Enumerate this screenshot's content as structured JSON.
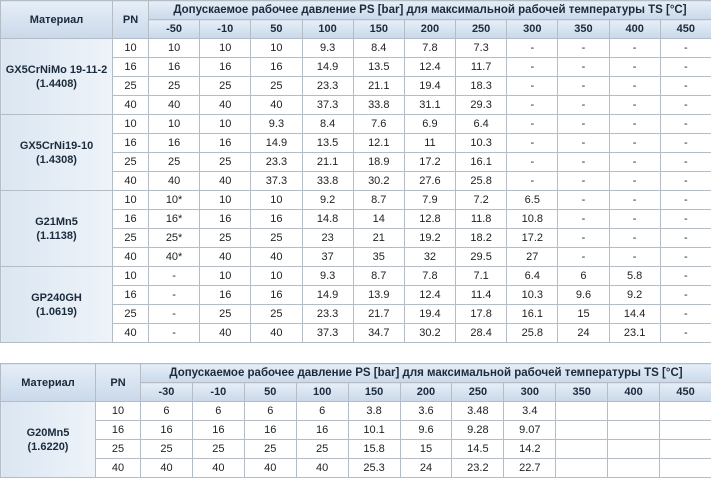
{
  "tables": [
    {
      "header": {
        "material": "Материал",
        "pn": "PN",
        "description": "Допускаемое рабочее давление PS [bar] для максимальной рабочей температуры TS [°C]",
        "temperatures": [
          "-50",
          "-10",
          "50",
          "100",
          "150",
          "200",
          "250",
          "300",
          "350",
          "400",
          "450"
        ]
      },
      "groups": [
        {
          "material": "GX5CrNiMo 19-11-2",
          "code": "(1.4408)",
          "rows": [
            {
              "pn": "10",
              "values": [
                "10",
                "10",
                "10",
                "9.3",
                "8.4",
                "7.8",
                "7.3",
                "-",
                "-",
                "-",
                "-"
              ]
            },
            {
              "pn": "16",
              "values": [
                "16",
                "16",
                "16",
                "14.9",
                "13.5",
                "12.4",
                "11.7",
                "-",
                "-",
                "-",
                "-"
              ]
            },
            {
              "pn": "25",
              "values": [
                "25",
                "25",
                "25",
                "23.3",
                "21.1",
                "19.4",
                "18.3",
                "-",
                "-",
                "-",
                "-"
              ]
            },
            {
              "pn": "40",
              "values": [
                "40",
                "40",
                "40",
                "37.3",
                "33.8",
                "31.1",
                "29.3",
                "-",
                "-",
                "-",
                "-"
              ]
            }
          ]
        },
        {
          "material": "GX5CrNi19-10",
          "code": "(1.4308)",
          "rows": [
            {
              "pn": "10",
              "values": [
                "10",
                "10",
                "9.3",
                "8.4",
                "7.6",
                "6.9",
                "6.4",
                "-",
                "-",
                "-",
                "-"
              ]
            },
            {
              "pn": "16",
              "values": [
                "16",
                "16",
                "14.9",
                "13.5",
                "12.1",
                "11",
                "10.3",
                "-",
                "-",
                "-",
                "-"
              ]
            },
            {
              "pn": "25",
              "values": [
                "25",
                "25",
                "23.3",
                "21.1",
                "18.9",
                "17.2",
                "16.1",
                "-",
                "-",
                "-",
                "-"
              ]
            },
            {
              "pn": "40",
              "values": [
                "40",
                "40",
                "37.3",
                "33.8",
                "30.2",
                "27.6",
                "25.8",
                "-",
                "-",
                "-",
                "-"
              ]
            }
          ]
        },
        {
          "material": "G21Mn5",
          "code": "(1.1138)",
          "rows": [
            {
              "pn": "10",
              "values": [
                "10*",
                "10",
                "10",
                "9.2",
                "8.7",
                "7.9",
                "7.2",
                "6.5",
                "-",
                "-",
                "-"
              ]
            },
            {
              "pn": "16",
              "values": [
                "16*",
                "16",
                "16",
                "14.8",
                "14",
                "12.8",
                "11.8",
                "10.8",
                "-",
                "-",
                "-"
              ]
            },
            {
              "pn": "25",
              "values": [
                "25*",
                "25",
                "25",
                "23",
                "21",
                "19.2",
                "18.2",
                "17.2",
                "-",
                "-",
                "-"
              ]
            },
            {
              "pn": "40",
              "values": [
                "40*",
                "40",
                "40",
                "37",
                "35",
                "32",
                "29.5",
                "27",
                "-",
                "-",
                "-"
              ]
            }
          ]
        },
        {
          "material": "GP240GH",
          "code": "(1.0619)",
          "rows": [
            {
              "pn": "10",
              "values": [
                "-",
                "10",
                "10",
                "9.3",
                "8.7",
                "7.8",
                "7.1",
                "6.4",
                "6",
                "5.8",
                "-"
              ]
            },
            {
              "pn": "16",
              "values": [
                "-",
                "16",
                "16",
                "14.9",
                "13.9",
                "12.4",
                "11.4",
                "10.3",
                "9.6",
                "9.2",
                "-"
              ]
            },
            {
              "pn": "25",
              "values": [
                "-",
                "25",
                "25",
                "23.3",
                "21.7",
                "19.4",
                "17.8",
                "16.1",
                "15",
                "14.4",
                "-"
              ]
            },
            {
              "pn": "40",
              "values": [
                "-",
                "40",
                "40",
                "37.3",
                "34.7",
                "30.2",
                "28.4",
                "25.8",
                "24",
                "23.1",
                "-"
              ]
            }
          ]
        }
      ]
    },
    {
      "header": {
        "material": "Материал",
        "pn": "PN",
        "description": "Допускаемое рабочее давление PS [bar] для максимальной рабочей температуры TS [°C]",
        "temperatures": [
          "-30",
          "-10",
          "50",
          "100",
          "150",
          "200",
          "250",
          "300",
          "350",
          "400",
          "450"
        ]
      },
      "groups": [
        {
          "material": "G20Mn5",
          "code": "(1.6220)",
          "rows": [
            {
              "pn": "10",
              "values": [
                "6",
                "6",
                "6",
                "6",
                "3.8",
                "3.6",
                "3.48",
                "3.4"
              ]
            },
            {
              "pn": "16",
              "values": [
                "16",
                "16",
                "16",
                "16",
                "10.1",
                "9.6",
                "9.28",
                "9.07"
              ]
            },
            {
              "pn": "25",
              "values": [
                "25",
                "25",
                "25",
                "25",
                "15.8",
                "15",
                "14.5",
                "14.2"
              ]
            },
            {
              "pn": "40",
              "values": [
                "40",
                "40",
                "40",
                "40",
                "25.3",
                "24",
                "23.2",
                "22.7"
              ]
            }
          ]
        }
      ]
    }
  ]
}
